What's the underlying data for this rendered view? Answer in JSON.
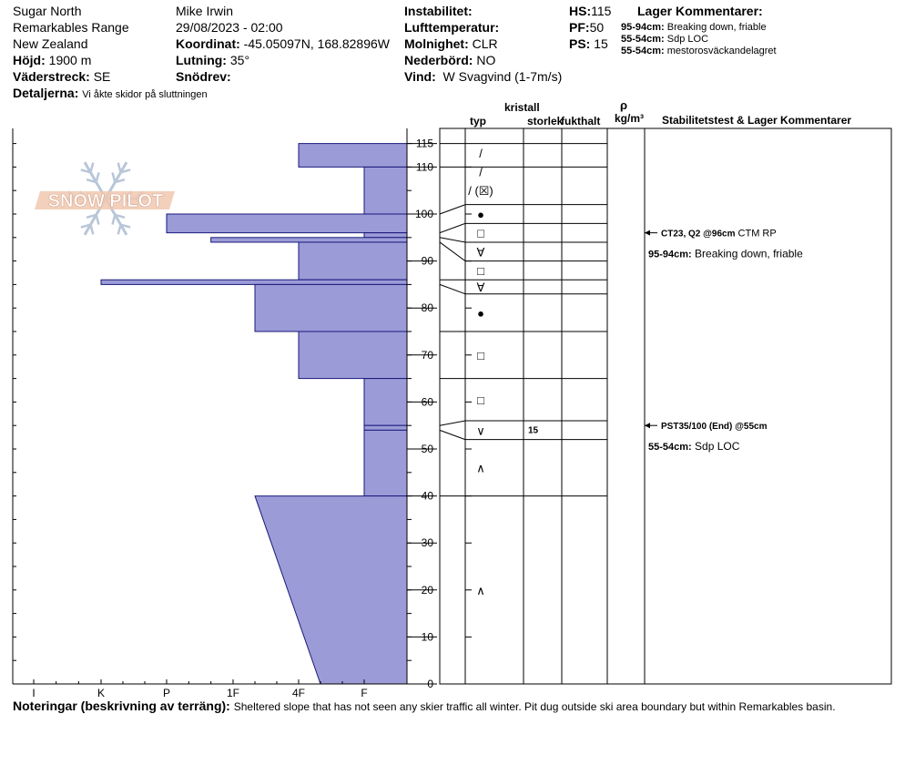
{
  "header": {
    "location": "Sugar North",
    "range": "Remarkables Range",
    "country": "New Zealand",
    "elevation_label": "Höjd:",
    "elevation_value": "1900 m",
    "aspect_label": "Väderstreck:",
    "aspect_value": "SE",
    "details_label": "Detaljerna:",
    "details_value": "Vi åkte skidor på sluttningen",
    "observer": "Mike Irwin",
    "datetime": "29/08/2023 - 02:00",
    "coord_label": "Koordinat:",
    "coord_value": "-45.05097N, 168.82896W",
    "slope_label": "Lutning:",
    "slope_value": "35°",
    "wind_loading_label": "Snödrev:",
    "wind_loading_value": "",
    "stability_label": "Instabilitet:",
    "stability_value": "",
    "air_temp_label": "Lufttemperatur:",
    "air_temp_value": "",
    "sky_label": "Molnighet:",
    "sky_value": "CLR",
    "precip_label": "Nederbörd:",
    "precip_value": "NO",
    "wind_label": "Vind:",
    "wind_value": "W Svagvind (1-7m/s)",
    "hs_label": "HS:",
    "hs_value": "115",
    "pf_label": "PF:",
    "pf_value": "50",
    "ps_label": "PS:",
    "ps_value": "15",
    "layer_comments_title": "Lager Kommentarer:",
    "layer_comments": [
      {
        "range": "95-94cm:",
        "text": "Breaking down, friable"
      },
      {
        "range": "55-54cm:",
        "text": "Sdp LOC"
      },
      {
        "range": "55-54cm:",
        "text": "mestorosväckandelagret"
      }
    ]
  },
  "logo_text": "SNOW PILOT",
  "columns": {
    "crystal": "kristall",
    "type": "typ",
    "size": "storlek",
    "moisture": "fukthalt",
    "rho": "ρ",
    "density_unit": "kg/m³",
    "stability": "Stabilitetstest & Lager Kommentarer"
  },
  "chart_data": {
    "type": "snow-profile",
    "snow_height_cm": 115,
    "yaxis_range": [
      0,
      115
    ],
    "yaxis_ticks": [
      0,
      10,
      20,
      30,
      40,
      50,
      60,
      70,
      80,
      90,
      100,
      110,
      115
    ],
    "hardness_scale": [
      "F",
      "4F",
      "1F",
      "P",
      "K",
      "I"
    ],
    "hardness_profile": [
      {
        "top": 115,
        "bottom": 110,
        "hardness": "4F"
      },
      {
        "top": 110,
        "bottom": 100,
        "hardness": "F"
      },
      {
        "top": 100,
        "bottom": 96,
        "hardness": "P"
      },
      {
        "top": 96,
        "bottom": 95,
        "hardness": "F"
      },
      {
        "top": 95,
        "bottom": 94,
        "hardness": "1F+"
      },
      {
        "top": 94,
        "bottom": 86,
        "hardness": "4F"
      },
      {
        "top": 86,
        "bottom": 85,
        "hardness": "K"
      },
      {
        "top": 85,
        "bottom": 75,
        "hardness": "1F-"
      },
      {
        "top": 75,
        "bottom": 65,
        "hardness": "4F"
      },
      {
        "top": 65,
        "bottom": 55,
        "hardness": "F"
      },
      {
        "top": 55,
        "bottom": 54,
        "hardness": "F"
      },
      {
        "top": 54,
        "bottom": 40,
        "hardness": "F"
      },
      {
        "top": 40,
        "bottom": 0,
        "hardness_top": "1F-",
        "hardness_bottom": "4F-"
      }
    ],
    "layer_boundaries_cm": [
      115,
      110,
      102,
      98,
      94,
      90,
      86,
      83,
      75,
      65,
      56,
      52,
      40
    ],
    "crystal_types": [
      {
        "depth": 113,
        "symbol": "/"
      },
      {
        "depth": 109,
        "symbol": "/"
      },
      {
        "depth": 105,
        "symbol": "/ (☒)"
      },
      {
        "depth": 100,
        "symbol": "●"
      },
      {
        "depth": 96,
        "symbol": "□"
      },
      {
        "depth": 92,
        "symbol": "∀"
      },
      {
        "depth": 88,
        "symbol": "□"
      },
      {
        "depth": 84.5,
        "symbol": "∀"
      },
      {
        "depth": 79,
        "symbol": "●"
      },
      {
        "depth": 70,
        "symbol": "□"
      },
      {
        "depth": 60.5,
        "symbol": "□"
      },
      {
        "depth": 54,
        "symbol": "∨"
      },
      {
        "depth": 46,
        "symbol": "∧"
      },
      {
        "depth": 20,
        "symbol": "∧"
      }
    ],
    "grain_sizes": [
      {
        "depth": 54,
        "value": "15"
      }
    ],
    "tests": [
      {
        "depth": 96,
        "label": "CT23, Q2 @96cm",
        "extra": "CTM RP"
      },
      {
        "depth": 55,
        "label": "PST35/100 (End) @55cm",
        "extra": ""
      }
    ],
    "test_comments": [
      {
        "depth": 96,
        "range": "95-94cm:",
        "text": "Breaking down, friable"
      },
      {
        "depth": 55,
        "range": "55-54cm:",
        "text": "Sdp LOC"
      }
    ]
  },
  "notes_label": "Noteringar (beskrivning av terräng):",
  "notes_text": "Sheltered slope that has not seen any skier traffic all winter. Pit dug outside ski area boundary but within Remarkables basin."
}
